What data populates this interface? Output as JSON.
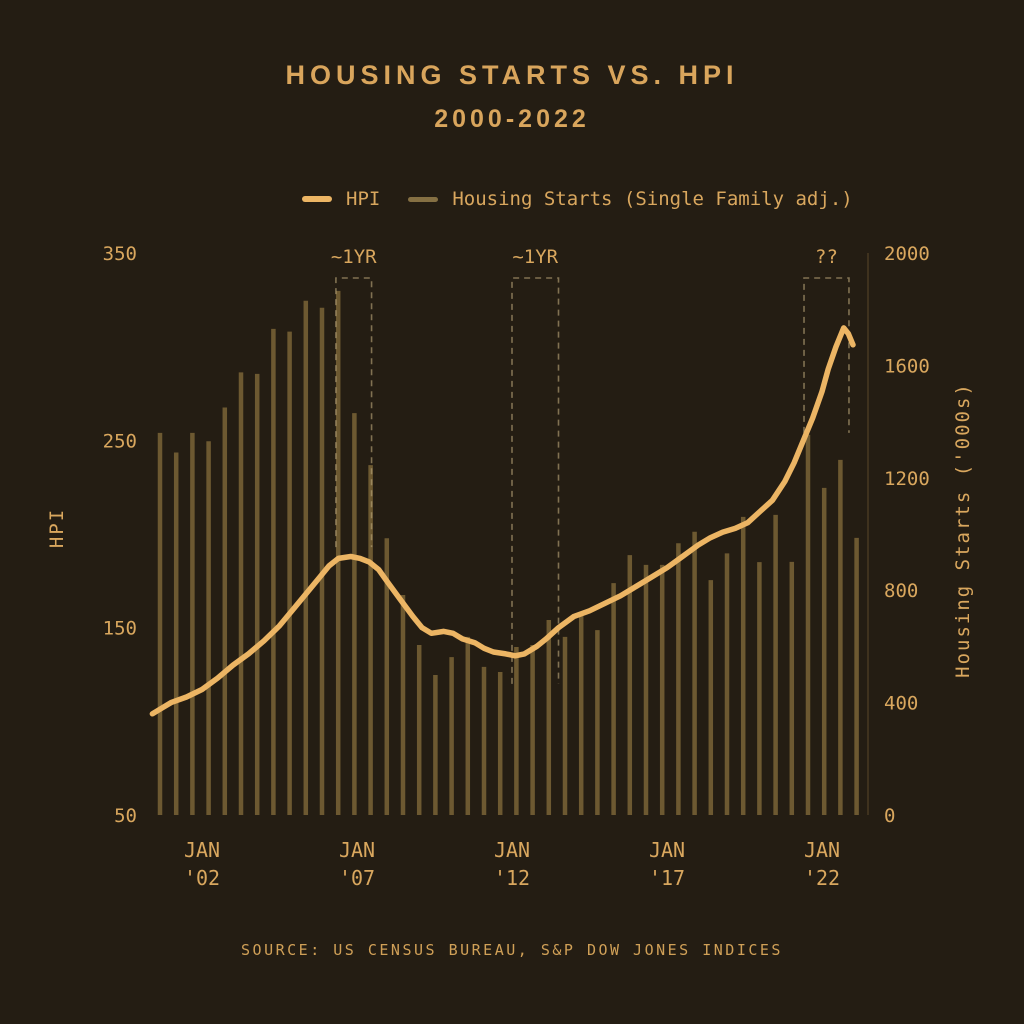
{
  "title": {
    "line1": "HOUSING STARTS VS. HPI",
    "line2": "2000-2022"
  },
  "legend": {
    "items": [
      {
        "label": "HPI",
        "color": "#ecb564"
      },
      {
        "label": "Housing Starts (Single Family adj.)",
        "color": "#857043"
      }
    ]
  },
  "source": "SOURCE: US CENSUS BUREAU, S&P DOW JONES INDICES",
  "colors": {
    "background": "#241d13",
    "text": "#d9a75e",
    "hpi_line": "#ecb564",
    "bars": "#725d33",
    "annotation_dash": "#b3a075"
  },
  "chart_data": {
    "type": "bar+line",
    "title": "HOUSING STARTS VS. HPI 2000-2022",
    "grid": false,
    "legend_position": "top",
    "x_axis": {
      "range_years": [
        2000,
        2023
      ],
      "tick_labels": [
        {
          "top": "JAN",
          "bottom": "'02",
          "year": 2002
        },
        {
          "top": "JAN",
          "bottom": "'07",
          "year": 2007
        },
        {
          "top": "JAN",
          "bottom": "'12",
          "year": 2012
        },
        {
          "top": "JAN",
          "bottom": "'17",
          "year": 2017
        },
        {
          "top": "JAN",
          "bottom": "'22",
          "year": 2022
        }
      ]
    },
    "left_axis": {
      "label": "HPI",
      "ticks": [
        350,
        250,
        150,
        50
      ],
      "range": [
        50,
        350
      ]
    },
    "right_axis": {
      "label": "Housing Starts ('000s)",
      "ticks": [
        2000,
        1600,
        1200,
        800,
        400,
        0
      ],
      "range": [
        0,
        2000
      ]
    },
    "series": [
      {
        "name": "Housing Starts (Single Family adj.)",
        "type": "bar",
        "axis": "right",
        "color": "#725d33",
        "interval": "semi-annual (2000-2022)",
        "values": [
          1360,
          1290,
          1360,
          1330,
          1450,
          1575,
          1570,
          1730,
          1720,
          1830,
          1805,
          1865,
          1430,
          1245,
          985,
          783,
          605,
          498,
          562,
          634,
          527,
          509,
          598,
          605,
          694,
          634,
          719,
          658,
          825,
          925,
          890,
          890,
          967,
          1008,
          836,
          931,
          1061,
          900,
          1068,
          901,
          1353,
          1164,
          1264,
          986
        ]
      },
      {
        "name": "HPI",
        "type": "line",
        "axis": "left",
        "color": "#ecb564",
        "points": [
          [
            2000.4,
            104
          ],
          [
            2000.7,
            107
          ],
          [
            2001,
            110
          ],
          [
            2001.5,
            113
          ],
          [
            2002,
            117
          ],
          [
            2002.5,
            123
          ],
          [
            2003,
            130
          ],
          [
            2003.5,
            136
          ],
          [
            2004,
            143
          ],
          [
            2004.5,
            151
          ],
          [
            2005,
            161
          ],
          [
            2005.4,
            169
          ],
          [
            2005.8,
            177
          ],
          [
            2006.1,
            183
          ],
          [
            2006.4,
            187
          ],
          [
            2006.8,
            188
          ],
          [
            2007.1,
            187
          ],
          [
            2007.4,
            185
          ],
          [
            2007.7,
            181
          ],
          [
            2008,
            174
          ],
          [
            2008.4,
            165
          ],
          [
            2008.8,
            156
          ],
          [
            2009.1,
            150
          ],
          [
            2009.4,
            147
          ],
          [
            2009.8,
            148
          ],
          [
            2010.1,
            147
          ],
          [
            2010.4,
            144
          ],
          [
            2010.8,
            142
          ],
          [
            2011.1,
            139
          ],
          [
            2011.4,
            137
          ],
          [
            2011.8,
            136
          ],
          [
            2012.1,
            135
          ],
          [
            2012.4,
            136
          ],
          [
            2012.8,
            140
          ],
          [
            2013.1,
            144
          ],
          [
            2013.5,
            150
          ],
          [
            2014,
            156
          ],
          [
            2014.5,
            159
          ],
          [
            2015,
            163
          ],
          [
            2015.5,
            167
          ],
          [
            2016,
            172
          ],
          [
            2016.5,
            177
          ],
          [
            2017,
            182
          ],
          [
            2017.5,
            188
          ],
          [
            2018,
            194
          ],
          [
            2018.4,
            198
          ],
          [
            2018.8,
            201
          ],
          [
            2019.2,
            203
          ],
          [
            2019.6,
            206
          ],
          [
            2020,
            212
          ],
          [
            2020.4,
            218
          ],
          [
            2020.8,
            228
          ],
          [
            2021.1,
            238
          ],
          [
            2021.4,
            250
          ],
          [
            2021.7,
            262
          ],
          [
            2022,
            276
          ],
          [
            2022.2,
            288
          ],
          [
            2022.45,
            300
          ],
          [
            2022.7,
            310
          ],
          [
            2022.85,
            307
          ],
          [
            2023,
            301
          ]
        ]
      }
    ],
    "annotations": [
      {
        "label": "~1YR",
        "year_start": 2006.32,
        "year_end": 2007.47,
        "bottom_hpi": 193
      },
      {
        "label": "~1YR",
        "year_start": 2012.0,
        "year_end": 2013.5,
        "bottom_hpi": 120
      },
      {
        "label": "??",
        "year_start": 2021.42,
        "year_end": 2022.87,
        "bottom_hpi": 254
      }
    ]
  }
}
